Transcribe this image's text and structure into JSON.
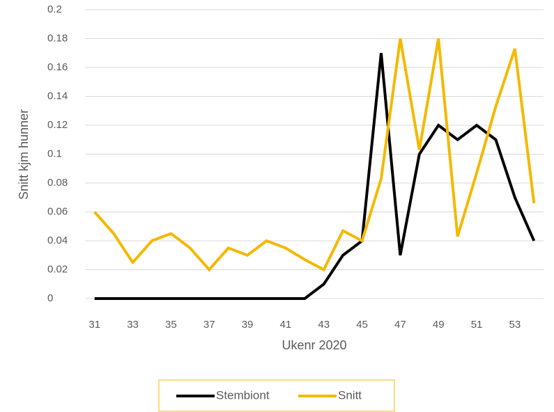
{
  "chart_data": {
    "type": "line",
    "y_label": "Snitt kjm hunner",
    "x_label": "Ukenr 2020",
    "x": [
      31,
      32,
      33,
      34,
      35,
      36,
      37,
      38,
      39,
      40,
      41,
      42,
      43,
      44,
      45,
      46,
      47,
      48,
      49,
      50,
      51,
      52,
      53,
      54
    ],
    "series": [
      {
        "name": "Stembiont",
        "color": "#000000",
        "values": [
          0,
          0,
          0,
          0,
          0,
          0,
          0,
          0,
          0,
          0,
          0,
          0,
          0.01,
          0.03,
          0.04,
          0.17,
          0.03,
          0.1,
          0.12,
          0.11,
          0.12,
          0.11,
          0.07,
          0.04
        ]
      },
      {
        "name": "Snitt",
        "color": "#f5b800",
        "values": [
          0.06,
          0.045,
          0.025,
          0.04,
          0.045,
          0.035,
          0.02,
          0.035,
          0.03,
          0.04,
          0.035,
          0.027,
          0.02,
          0.047,
          0.04,
          0.083,
          0.18,
          0.103,
          0.18,
          0.043,
          0.087,
          0.133,
          0.173,
          0.066
        ]
      }
    ],
    "xlim": [
      30.5,
      54.5
    ],
    "xticks": [
      31,
      33,
      35,
      37,
      39,
      41,
      43,
      45,
      47,
      49,
      51,
      53
    ],
    "ylim": [
      0,
      0.2
    ],
    "yticks": [
      0,
      0.02,
      0.04,
      0.06,
      0.08,
      0.1,
      0.12,
      0.14,
      0.16,
      0.18,
      0.2
    ],
    "grid": true,
    "legend": "bottom"
  }
}
